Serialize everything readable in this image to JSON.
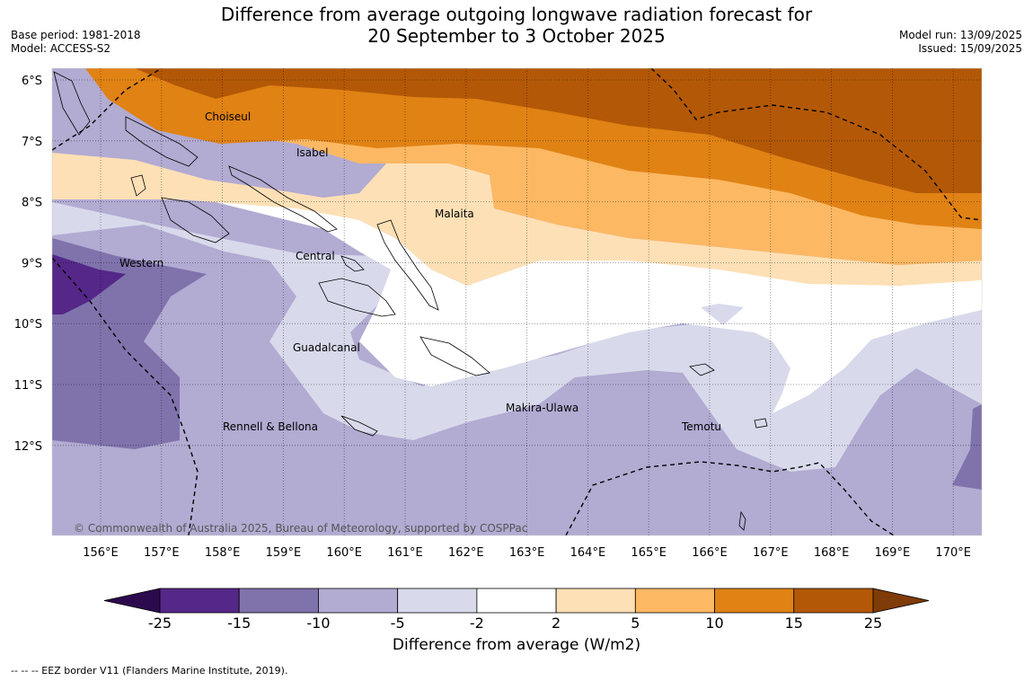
{
  "header": {
    "title_line1": "Difference from average outgoing longwave radiation forecast for",
    "title_line2": "20 September to 3 October 2025",
    "base_period": "Base period: 1981-2018",
    "model": "Model: ACCESS-S2",
    "model_run": "Model run: 13/09/2025",
    "issued": "Issued: 15/09/2025"
  },
  "map": {
    "lat_labels": [
      "6°S",
      "7°S",
      "8°S",
      "9°S",
      "10°S",
      "11°S",
      "12°S"
    ],
    "lon_labels": [
      "156°E",
      "157°E",
      "158°E",
      "159°E",
      "160°E",
      "161°E",
      "162°E",
      "163°E",
      "164°E",
      "165°E",
      "166°E",
      "167°E",
      "168°E",
      "169°E",
      "170°E"
    ],
    "province_labels": [
      "Choiseul",
      "Isabel",
      "Malaita",
      "Western",
      "Central",
      "Guadalcanal",
      "Makira-Ulawa",
      "Rennell & Bellona",
      "Temotu"
    ],
    "copyright": "© Commonwealth of Australia 2025, Bureau of Meteorology, supported by COSPPac"
  },
  "colorbar": {
    "ticks": [
      "-25",
      "-15",
      "-10",
      "-5",
      "-2",
      "2",
      "5",
      "10",
      "15",
      "25"
    ],
    "colors": [
      "#2d0a4e",
      "#542788",
      "#8073ac",
      "#b2abd2",
      "#d8daeb",
      "#ffffff",
      "#fee0b6",
      "#fdb863",
      "#e08214",
      "#b35806",
      "#7f3b08"
    ],
    "label": "Difference from average (W/m2)"
  },
  "footer": {
    "legend": "--  --  -- EEZ border V11 (Flanders Marine Institute, 2019)."
  }
}
